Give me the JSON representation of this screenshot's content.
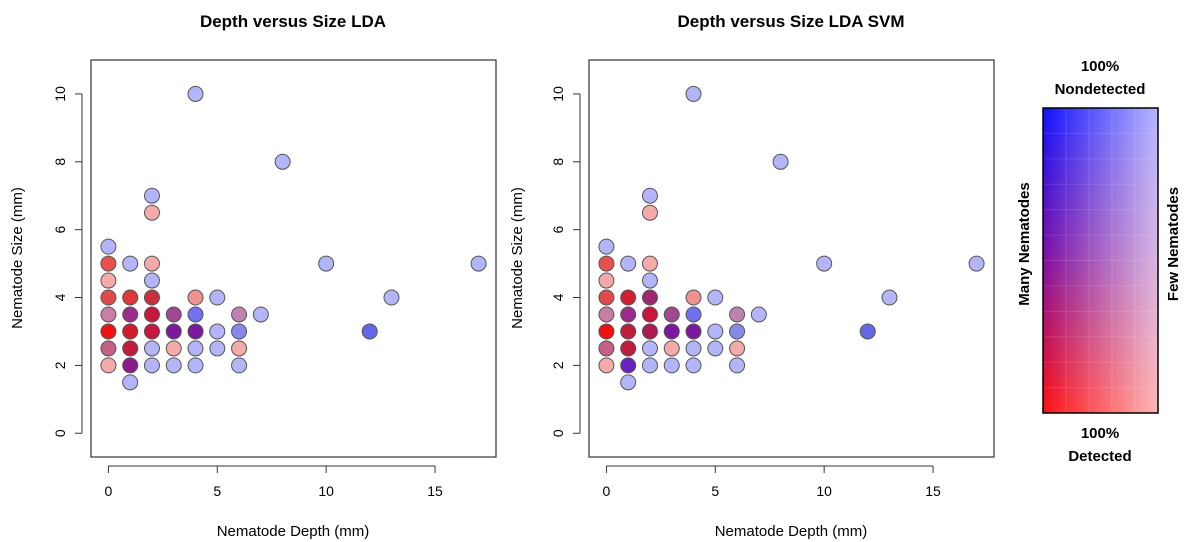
{
  "chart_data": [
    {
      "type": "scatter",
      "title": "Depth versus Size LDA",
      "xlabel": "Nematode Depth (mm)",
      "ylabel": "Nematode Size (mm)",
      "xlim": [
        -0.8,
        17.8
      ],
      "ylim": [
        -0.7,
        11.0
      ],
      "xticks": [
        0,
        5,
        10,
        15
      ],
      "yticks": [
        0,
        2,
        4,
        6,
        8,
        10
      ],
      "points": [
        {
          "x": 0,
          "y": 2,
          "color": "#f5aaaa"
        },
        {
          "x": 0,
          "y": 2.5,
          "color": "#c65f86"
        },
        {
          "x": 0,
          "y": 3,
          "color": "#ee1111"
        },
        {
          "x": 0,
          "y": 3.5,
          "color": "#c87fa6"
        },
        {
          "x": 0,
          "y": 4,
          "color": "#e24a4a"
        },
        {
          "x": 0,
          "y": 4.5,
          "color": "#f5aaaa"
        },
        {
          "x": 0,
          "y": 5,
          "color": "#e75050"
        },
        {
          "x": 0,
          "y": 5.5,
          "color": "#b4b4f8"
        },
        {
          "x": 1,
          "y": 1.5,
          "color": "#b4b4f8"
        },
        {
          "x": 1,
          "y": 2,
          "color": "#8c1c8c"
        },
        {
          "x": 1,
          "y": 2.5,
          "color": "#c01c3c"
        },
        {
          "x": 1,
          "y": 3,
          "color": "#d01c2c"
        },
        {
          "x": 1,
          "y": 3.5,
          "color": "#9c2c8c"
        },
        {
          "x": 1,
          "y": 4,
          "color": "#e03838"
        },
        {
          "x": 1,
          "y": 5,
          "color": "#b4b4f8"
        },
        {
          "x": 2,
          "y": 2,
          "color": "#b4b4f8"
        },
        {
          "x": 2,
          "y": 2.5,
          "color": "#b4b4f8"
        },
        {
          "x": 2,
          "y": 3,
          "color": "#c8163c"
        },
        {
          "x": 2,
          "y": 3.5,
          "color": "#c8163c"
        },
        {
          "x": 2,
          "y": 4,
          "color": "#c83040"
        },
        {
          "x": 2,
          "y": 4.5,
          "color": "#b4b4f8"
        },
        {
          "x": 2,
          "y": 5,
          "color": "#f5aaaa"
        },
        {
          "x": 2,
          "y": 6.5,
          "color": "#f5aaaa"
        },
        {
          "x": 2,
          "y": 7,
          "color": "#b4b4f8"
        },
        {
          "x": 3,
          "y": 2,
          "color": "#b4b4f8"
        },
        {
          "x": 3,
          "y": 2.5,
          "color": "#f5aaaa"
        },
        {
          "x": 3,
          "y": 3,
          "color": "#7c18a0"
        },
        {
          "x": 3,
          "y": 3.5,
          "color": "#a04890"
        },
        {
          "x": 4,
          "y": 2,
          "color": "#b4b4f8"
        },
        {
          "x": 4,
          "y": 2.5,
          "color": "#b4b4f8"
        },
        {
          "x": 4,
          "y": 3,
          "color": "#7c18a0"
        },
        {
          "x": 4,
          "y": 3.5,
          "color": "#7070f0"
        },
        {
          "x": 4,
          "y": 4,
          "color": "#f09090"
        },
        {
          "x": 4,
          "y": 10,
          "color": "#b4b4f8"
        },
        {
          "x": 5,
          "y": 2.5,
          "color": "#b4b4f8"
        },
        {
          "x": 5,
          "y": 3,
          "color": "#b4b4f8"
        },
        {
          "x": 5,
          "y": 4,
          "color": "#b4b4f8"
        },
        {
          "x": 6,
          "y": 2,
          "color": "#b4b4f8"
        },
        {
          "x": 6,
          "y": 2.5,
          "color": "#f5aaaa"
        },
        {
          "x": 6,
          "y": 3,
          "color": "#8888ec"
        },
        {
          "x": 6,
          "y": 3.5,
          "color": "#c080b0"
        },
        {
          "x": 7,
          "y": 3.5,
          "color": "#b4b4f8"
        },
        {
          "x": 8,
          "y": 8,
          "color": "#b4b4f8"
        },
        {
          "x": 10,
          "y": 5,
          "color": "#b4b4f8"
        },
        {
          "x": 12,
          "y": 3,
          "color": "#6666e8"
        },
        {
          "x": 13,
          "y": 4,
          "color": "#b4b4f8"
        },
        {
          "x": 17,
          "y": 5,
          "color": "#b4b4f8"
        }
      ]
    },
    {
      "type": "scatter",
      "title": "Depth versus Size LDA SVM",
      "xlabel": "Nematode Depth (mm)",
      "ylabel": "Nematode Size (mm)",
      "xlim": [
        -0.8,
        17.8
      ],
      "ylim": [
        -0.7,
        11.0
      ],
      "xticks": [
        0,
        5,
        10,
        15
      ],
      "yticks": [
        0,
        2,
        4,
        6,
        8,
        10
      ],
      "points": [
        {
          "x": 0,
          "y": 2,
          "color": "#f5aaaa"
        },
        {
          "x": 0,
          "y": 2.5,
          "color": "#c65f86"
        },
        {
          "x": 0,
          "y": 3,
          "color": "#ee1111"
        },
        {
          "x": 0,
          "y": 3.5,
          "color": "#c87fa6"
        },
        {
          "x": 0,
          "y": 4,
          "color": "#e24a4a"
        },
        {
          "x": 0,
          "y": 4.5,
          "color": "#f5aaaa"
        },
        {
          "x": 0,
          "y": 5,
          "color": "#e75050"
        },
        {
          "x": 0,
          "y": 5.5,
          "color": "#b4b4f8"
        },
        {
          "x": 1,
          "y": 1.5,
          "color": "#b4b4f8"
        },
        {
          "x": 1,
          "y": 2,
          "color": "#6a20c0"
        },
        {
          "x": 1,
          "y": 2.5,
          "color": "#c01c3c"
        },
        {
          "x": 1,
          "y": 3,
          "color": "#c01c3c"
        },
        {
          "x": 1,
          "y": 3.5,
          "color": "#9c2c8c"
        },
        {
          "x": 1,
          "y": 4,
          "color": "#d02030"
        },
        {
          "x": 1,
          "y": 5,
          "color": "#b4b4f8"
        },
        {
          "x": 2,
          "y": 2,
          "color": "#b4b4f8"
        },
        {
          "x": 2,
          "y": 2.5,
          "color": "#b4b4f8"
        },
        {
          "x": 2,
          "y": 3,
          "color": "#b01850"
        },
        {
          "x": 2,
          "y": 3.5,
          "color": "#c8163c"
        },
        {
          "x": 2,
          "y": 4,
          "color": "#a02870"
        },
        {
          "x": 2,
          "y": 4.5,
          "color": "#b4b4f8"
        },
        {
          "x": 2,
          "y": 5,
          "color": "#f5aaaa"
        },
        {
          "x": 2,
          "y": 6.5,
          "color": "#f5aaaa"
        },
        {
          "x": 2,
          "y": 7,
          "color": "#b4b4f8"
        },
        {
          "x": 3,
          "y": 2,
          "color": "#b4b4f8"
        },
        {
          "x": 3,
          "y": 2.5,
          "color": "#f5aaaa"
        },
        {
          "x": 3,
          "y": 3,
          "color": "#7c18a0"
        },
        {
          "x": 3,
          "y": 3.5,
          "color": "#a04890"
        },
        {
          "x": 4,
          "y": 2,
          "color": "#b4b4f8"
        },
        {
          "x": 4,
          "y": 2.5,
          "color": "#b4b4f8"
        },
        {
          "x": 4,
          "y": 3,
          "color": "#7c18a0"
        },
        {
          "x": 4,
          "y": 3.5,
          "color": "#7070f0"
        },
        {
          "x": 4,
          "y": 4,
          "color": "#f09090"
        },
        {
          "x": 4,
          "y": 10,
          "color": "#b4b4f8"
        },
        {
          "x": 5,
          "y": 2.5,
          "color": "#b4b4f8"
        },
        {
          "x": 5,
          "y": 3,
          "color": "#b4b4f8"
        },
        {
          "x": 5,
          "y": 4,
          "color": "#b4b4f8"
        },
        {
          "x": 6,
          "y": 2,
          "color": "#b4b4f8"
        },
        {
          "x": 6,
          "y": 2.5,
          "color": "#f5aaaa"
        },
        {
          "x": 6,
          "y": 3,
          "color": "#8888ec"
        },
        {
          "x": 6,
          "y": 3.5,
          "color": "#c080b0"
        },
        {
          "x": 7,
          "y": 3.5,
          "color": "#b4b4f8"
        },
        {
          "x": 8,
          "y": 8,
          "color": "#b4b4f8"
        },
        {
          "x": 10,
          "y": 5,
          "color": "#b4b4f8"
        },
        {
          "x": 12,
          "y": 3,
          "color": "#6666e8"
        },
        {
          "x": 13,
          "y": 4,
          "color": "#b4b4f8"
        },
        {
          "x": 17,
          "y": 5,
          "color": "#b4b4f8"
        }
      ]
    }
  ],
  "legend": {
    "top_line1": "100%",
    "top_line2": "Nondetected",
    "bottom_line1": "100%",
    "bottom_line2": "Detected",
    "left_label": "Many Nematodes",
    "right_label": "Few Nematodes",
    "colors": {
      "top": "#1010ff",
      "bottom": "#ff1010",
      "mid": "#8010a0",
      "faded": "#ffffff"
    }
  }
}
